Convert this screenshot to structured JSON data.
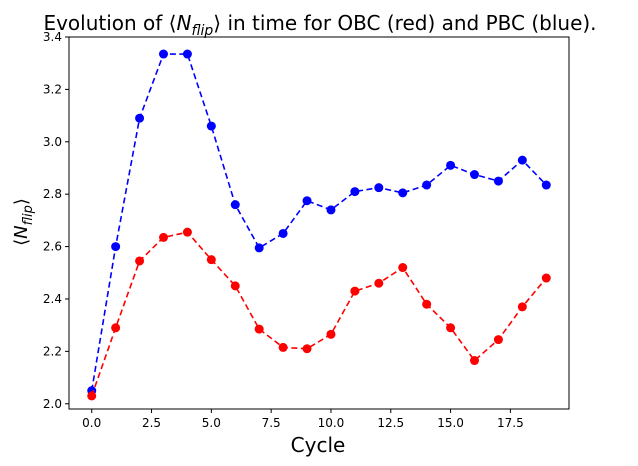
{
  "chart_data": {
    "type": "line",
    "title": "Evolution of ⟨N_flip⟩ in time for OBC (red) and PBC (blue).",
    "title_parts": {
      "prefix": "Evolution of ⟨",
      "n": "N",
      "sub": "flip",
      "suffix": "⟩ in time for OBC (red) and PBC (blue)."
    },
    "xlabel": "Cycle",
    "ylabel_parts": {
      "open": "⟨",
      "n": "N",
      "sub": "flip",
      "close": "⟩"
    },
    "xlim": [
      -0.95,
      19.95
    ],
    "ylim": [
      1.98,
      3.4
    ],
    "x_ticks": [
      0.0,
      2.5,
      5.0,
      7.5,
      10.0,
      12.5,
      15.0,
      17.5
    ],
    "x_tick_labels": [
      "0.0",
      "2.5",
      "5.0",
      "7.5",
      "10.0",
      "12.5",
      "15.0",
      "17.5"
    ],
    "y_ticks": [
      2.0,
      2.2,
      2.4,
      2.6,
      2.8,
      3.0,
      3.2,
      3.4
    ],
    "y_tick_labels": [
      "2.0",
      "2.2",
      "2.4",
      "2.6",
      "2.8",
      "3.0",
      "3.2",
      "3.4"
    ],
    "grid": false,
    "x": [
      0,
      1,
      2,
      3,
      4,
      5,
      6,
      7,
      8,
      9,
      10,
      11,
      12,
      13,
      14,
      15,
      16,
      17,
      18,
      19
    ],
    "series": [
      {
        "color": "#0000ff",
        "linestyle": "dashed",
        "marker": "circle",
        "values": [
          2.05,
          2.6,
          3.09,
          3.335,
          3.335,
          3.06,
          2.76,
          2.595,
          2.65,
          2.775,
          2.74,
          2.81,
          2.825,
          2.805,
          2.835,
          2.91,
          2.875,
          2.85,
          2.93,
          2.835
        ]
      },
      {
        "color": "#ff0000",
        "linestyle": "dashed",
        "marker": "circle",
        "values": [
          2.03,
          2.29,
          2.545,
          2.635,
          2.655,
          2.55,
          2.45,
          2.285,
          2.215,
          2.21,
          2.265,
          2.43,
          2.46,
          2.52,
          2.38,
          2.29,
          2.165,
          2.245,
          2.37,
          2.48
        ]
      }
    ]
  }
}
